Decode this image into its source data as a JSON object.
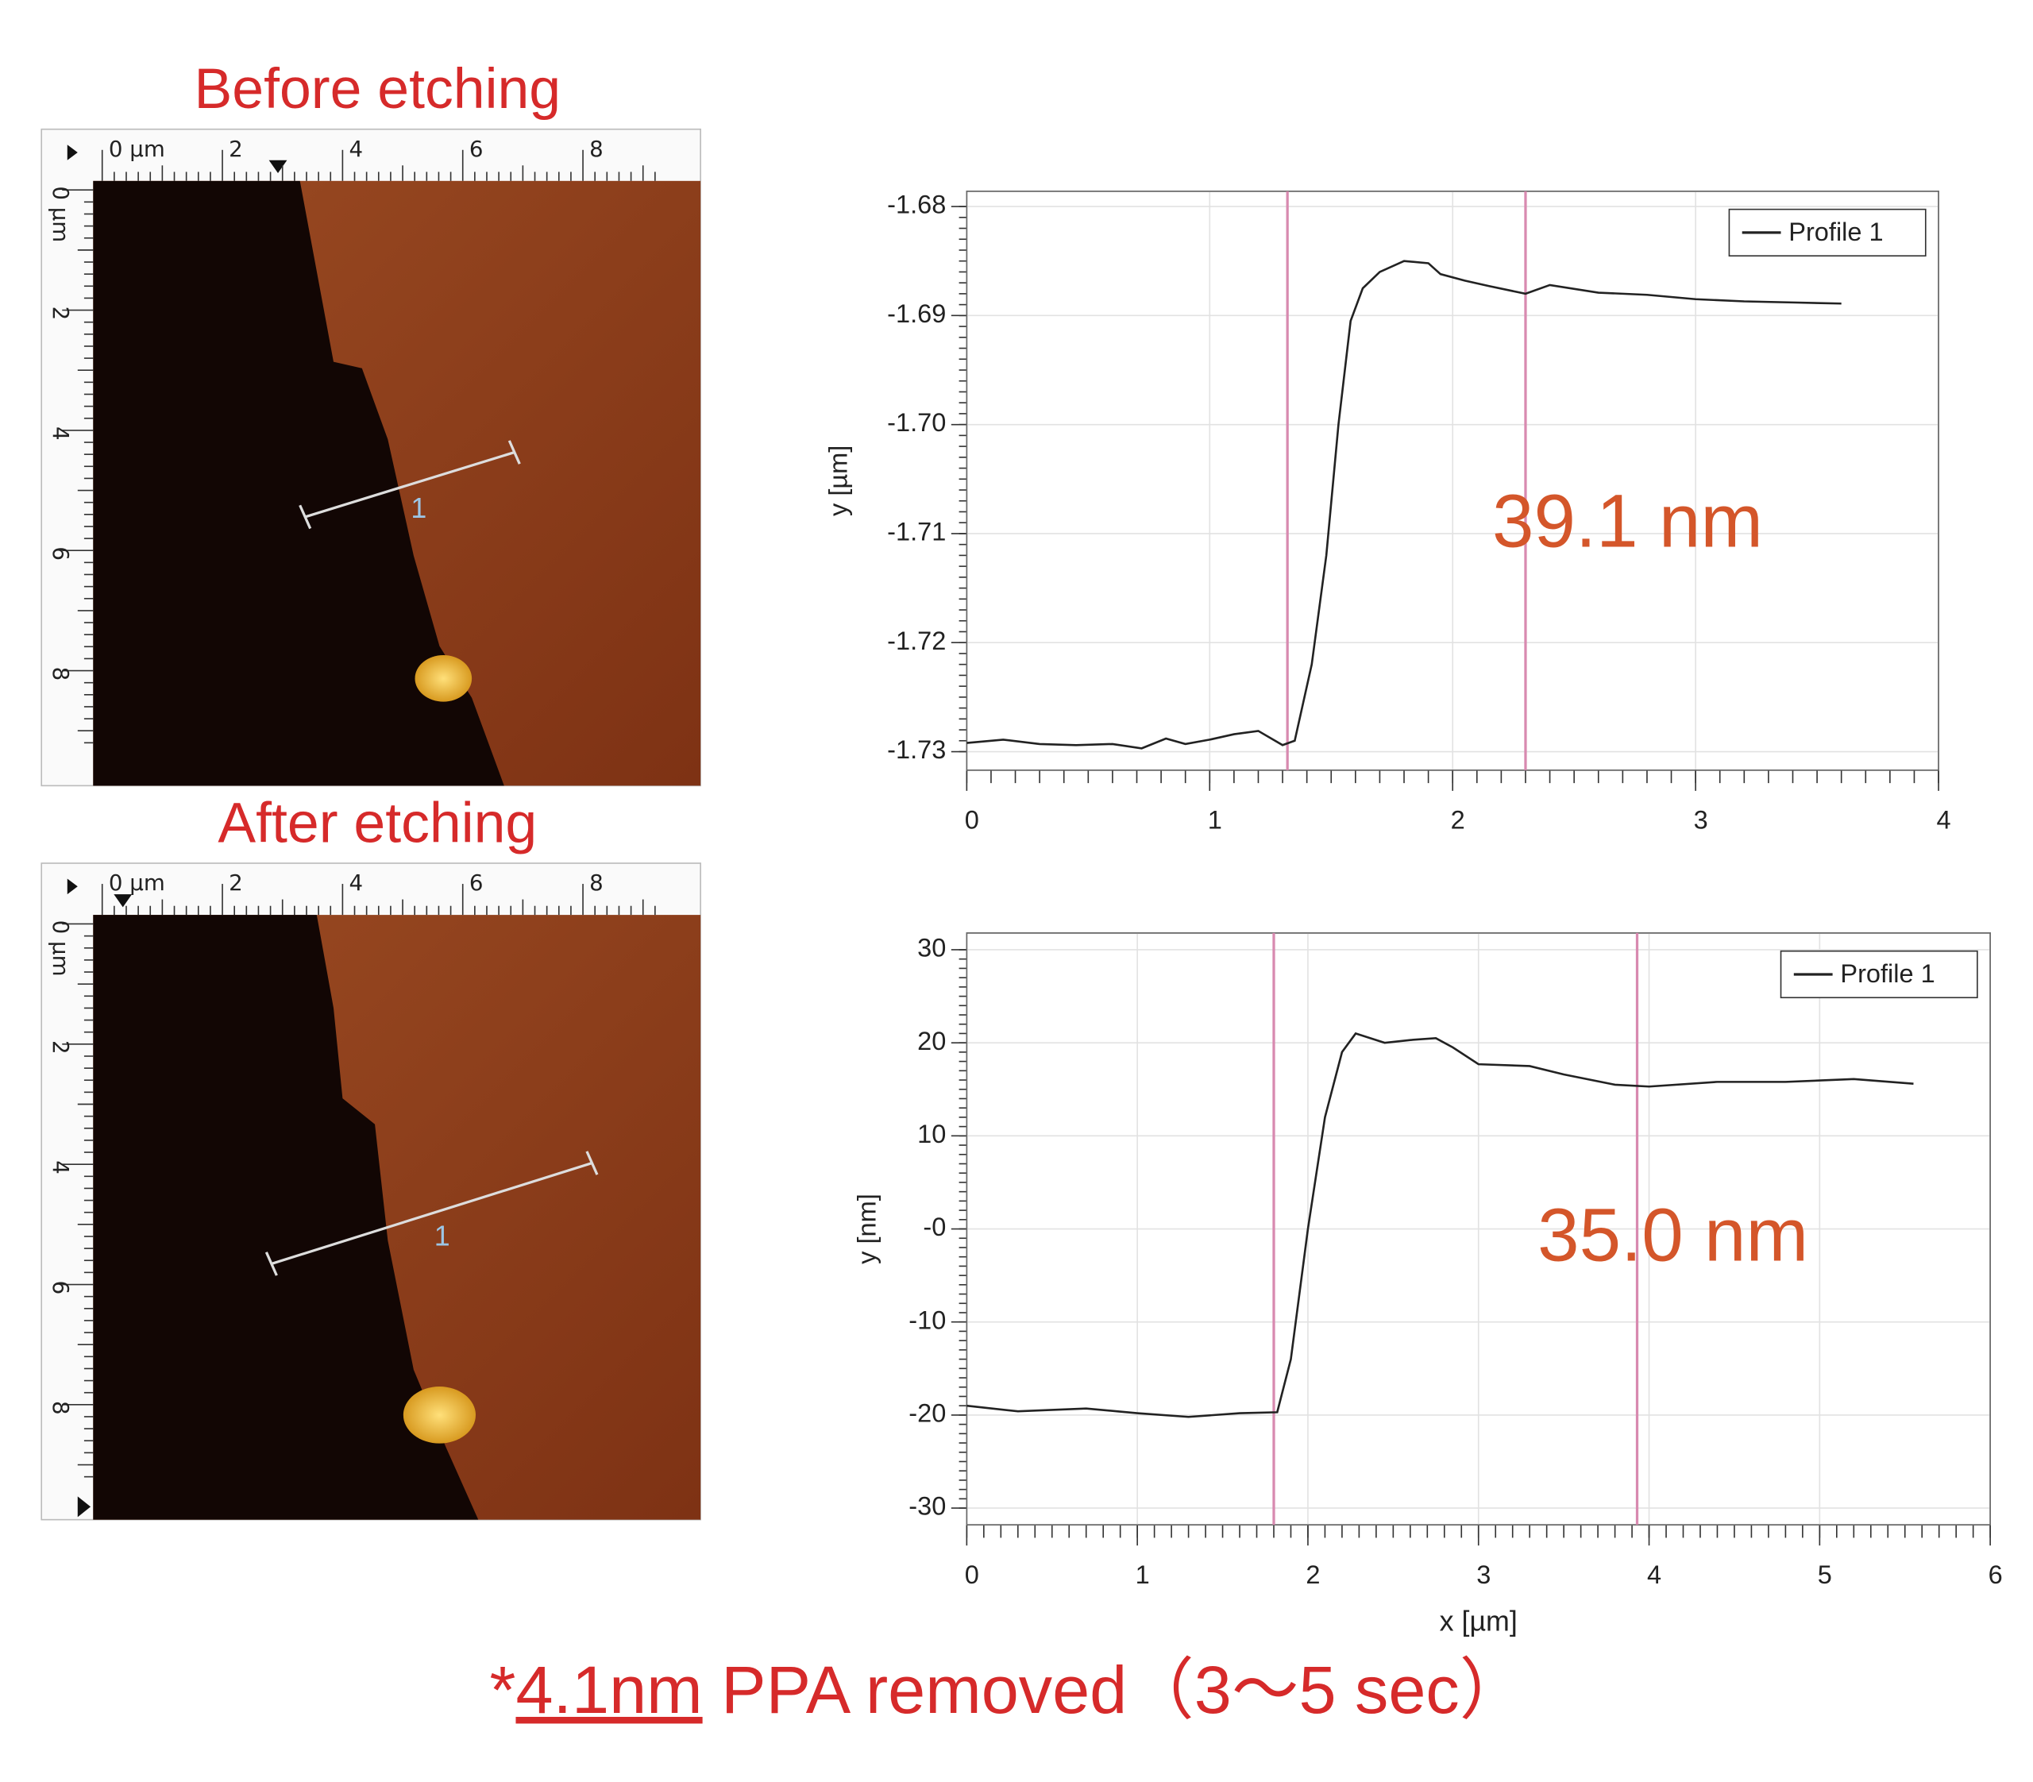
{
  "panels": [
    {
      "title": "Before etching",
      "ruler_x": [
        "0 µm",
        "2",
        "4",
        "6",
        "8"
      ],
      "ruler_y": [
        "0 µm",
        "2",
        "4",
        "6",
        "8"
      ],
      "line_label": "1"
    },
    {
      "title": "After etching",
      "ruler_x": [
        "0 µm",
        "2",
        "4",
        "6",
        "8"
      ],
      "ruler_y": [
        "0 µm",
        "2",
        "4",
        "6",
        "8"
      ],
      "line_label": "1"
    }
  ],
  "chart_data": [
    {
      "type": "line",
      "ylabel": "y [µm]",
      "annotation": "39.1 nm",
      "grid": true,
      "legend": "upper right",
      "xlim": [
        0,
        4
      ],
      "xticks": [
        0,
        1,
        2,
        3,
        4
      ],
      "ylim": [
        -1.7317,
        -1.6786
      ],
      "yticks": [
        -1.68,
        -1.69,
        {
          "value": -1.7,
          "label": "-1.70"
        },
        -1.71,
        -1.72,
        -1.73
      ],
      "cursors": [
        1.32,
        2.3
      ],
      "cursor_color": "#d88ab0",
      "x": [
        0,
        0.15,
        0.3,
        0.45,
        0.6,
        0.72,
        0.82,
        0.9,
        1.0,
        1.1,
        1.2,
        1.3,
        1.35,
        1.42,
        1.48,
        1.53,
        1.58,
        1.63,
        1.7,
        1.8,
        1.9,
        1.95,
        2.05,
        2.15,
        2.3,
        2.4,
        2.6,
        2.8,
        3.0,
        3.2,
        3.4,
        3.6
      ],
      "series": [
        {
          "name": "Profile 1",
          "color": "#222222",
          "values": [
            -1.7292,
            -1.7289,
            -1.7293,
            -1.7294,
            -1.7293,
            -1.7297,
            -1.7288,
            -1.7293,
            -1.7289,
            -1.7284,
            -1.7281,
            -1.7294,
            -1.729,
            -1.722,
            -1.712,
            -1.7,
            -1.6905,
            -1.6875,
            -1.686,
            -1.685,
            -1.6852,
            -1.6862,
            -1.6868,
            -1.6873,
            -1.688,
            -1.6872,
            -1.6879,
            -1.6881,
            -1.6885,
            -1.6887,
            -1.6888,
            -1.6889
          ]
        }
      ]
    },
    {
      "type": "line",
      "ylabel": "y [nm]",
      "xlabel": "x [µm]",
      "annotation": "35.0 nm",
      "grid": true,
      "legend": "upper right",
      "xlim": [
        0,
        6
      ],
      "xticks": [
        0,
        1,
        2,
        3,
        4,
        5,
        6
      ],
      "ylim": [
        -31.8,
        31.8
      ],
      "yticks": [
        30,
        20,
        10,
        {
          "value": 0,
          "label": "-0"
        },
        -10,
        -20,
        -30
      ],
      "cursors": [
        1.8,
        3.93
      ],
      "cursor_color": "#d88ab0",
      "x": [
        0,
        0.3,
        0.7,
        1.0,
        1.3,
        1.6,
        1.82,
        1.9,
        2.0,
        2.1,
        2.2,
        2.28,
        2.45,
        2.6,
        2.75,
        2.85,
        3.0,
        3.3,
        3.5,
        3.8,
        4.0,
        4.4,
        4.8,
        5.2,
        5.55
      ],
      "series": [
        {
          "name": "Profile 1",
          "color": "#222222",
          "values": [
            -19,
            -19.6,
            -19.3,
            -19.8,
            -20.2,
            -19.8,
            -19.7,
            -14,
            0,
            12,
            19,
            21,
            20,
            20.3,
            20.5,
            19.5,
            17.7,
            17.5,
            16.6,
            15.5,
            15.3,
            15.8,
            15.8,
            16.1,
            15.6
          ]
        }
      ]
    }
  ],
  "footnote": {
    "prefix": "*",
    "underlined": "4.1nm",
    "rest": " PPA removed（3～5 sec）"
  }
}
